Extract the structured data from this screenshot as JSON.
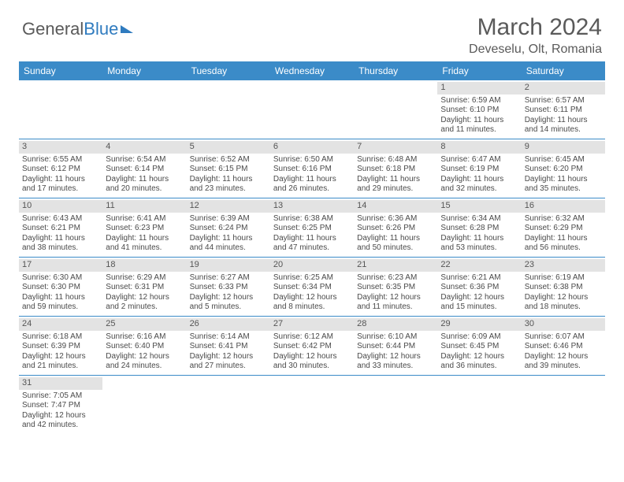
{
  "logo": {
    "part1": "General",
    "part2": "Blue"
  },
  "title": "March 2024",
  "location": "Deveselu, Olt, Romania",
  "colors": {
    "header_bg": "#3b8bc8",
    "header_text": "#ffffff",
    "daynum_bg": "#e3e3e3",
    "text": "#4a4a4a",
    "rule": "#3b8bc8",
    "logo_gray": "#5a5a5a",
    "logo_blue": "#2f7bbf"
  },
  "typography": {
    "title_fontsize": 30,
    "location_fontsize": 16,
    "dayheader_fontsize": 12,
    "cell_fontsize": 10
  },
  "day_names": [
    "Sunday",
    "Monday",
    "Tuesday",
    "Wednesday",
    "Thursday",
    "Friday",
    "Saturday"
  ],
  "weeks": [
    [
      null,
      null,
      null,
      null,
      null,
      {
        "n": "1",
        "sr": "Sunrise: 6:59 AM",
        "ss": "Sunset: 6:10 PM",
        "d1": "Daylight: 11 hours",
        "d2": "and 11 minutes."
      },
      {
        "n": "2",
        "sr": "Sunrise: 6:57 AM",
        "ss": "Sunset: 6:11 PM",
        "d1": "Daylight: 11 hours",
        "d2": "and 14 minutes."
      }
    ],
    [
      {
        "n": "3",
        "sr": "Sunrise: 6:55 AM",
        "ss": "Sunset: 6:12 PM",
        "d1": "Daylight: 11 hours",
        "d2": "and 17 minutes."
      },
      {
        "n": "4",
        "sr": "Sunrise: 6:54 AM",
        "ss": "Sunset: 6:14 PM",
        "d1": "Daylight: 11 hours",
        "d2": "and 20 minutes."
      },
      {
        "n": "5",
        "sr": "Sunrise: 6:52 AM",
        "ss": "Sunset: 6:15 PM",
        "d1": "Daylight: 11 hours",
        "d2": "and 23 minutes."
      },
      {
        "n": "6",
        "sr": "Sunrise: 6:50 AM",
        "ss": "Sunset: 6:16 PM",
        "d1": "Daylight: 11 hours",
        "d2": "and 26 minutes."
      },
      {
        "n": "7",
        "sr": "Sunrise: 6:48 AM",
        "ss": "Sunset: 6:18 PM",
        "d1": "Daylight: 11 hours",
        "d2": "and 29 minutes."
      },
      {
        "n": "8",
        "sr": "Sunrise: 6:47 AM",
        "ss": "Sunset: 6:19 PM",
        "d1": "Daylight: 11 hours",
        "d2": "and 32 minutes."
      },
      {
        "n": "9",
        "sr": "Sunrise: 6:45 AM",
        "ss": "Sunset: 6:20 PM",
        "d1": "Daylight: 11 hours",
        "d2": "and 35 minutes."
      }
    ],
    [
      {
        "n": "10",
        "sr": "Sunrise: 6:43 AM",
        "ss": "Sunset: 6:21 PM",
        "d1": "Daylight: 11 hours",
        "d2": "and 38 minutes."
      },
      {
        "n": "11",
        "sr": "Sunrise: 6:41 AM",
        "ss": "Sunset: 6:23 PM",
        "d1": "Daylight: 11 hours",
        "d2": "and 41 minutes."
      },
      {
        "n": "12",
        "sr": "Sunrise: 6:39 AM",
        "ss": "Sunset: 6:24 PM",
        "d1": "Daylight: 11 hours",
        "d2": "and 44 minutes."
      },
      {
        "n": "13",
        "sr": "Sunrise: 6:38 AM",
        "ss": "Sunset: 6:25 PM",
        "d1": "Daylight: 11 hours",
        "d2": "and 47 minutes."
      },
      {
        "n": "14",
        "sr": "Sunrise: 6:36 AM",
        "ss": "Sunset: 6:26 PM",
        "d1": "Daylight: 11 hours",
        "d2": "and 50 minutes."
      },
      {
        "n": "15",
        "sr": "Sunrise: 6:34 AM",
        "ss": "Sunset: 6:28 PM",
        "d1": "Daylight: 11 hours",
        "d2": "and 53 minutes."
      },
      {
        "n": "16",
        "sr": "Sunrise: 6:32 AM",
        "ss": "Sunset: 6:29 PM",
        "d1": "Daylight: 11 hours",
        "d2": "and 56 minutes."
      }
    ],
    [
      {
        "n": "17",
        "sr": "Sunrise: 6:30 AM",
        "ss": "Sunset: 6:30 PM",
        "d1": "Daylight: 11 hours",
        "d2": "and 59 minutes."
      },
      {
        "n": "18",
        "sr": "Sunrise: 6:29 AM",
        "ss": "Sunset: 6:31 PM",
        "d1": "Daylight: 12 hours",
        "d2": "and 2 minutes."
      },
      {
        "n": "19",
        "sr": "Sunrise: 6:27 AM",
        "ss": "Sunset: 6:33 PM",
        "d1": "Daylight: 12 hours",
        "d2": "and 5 minutes."
      },
      {
        "n": "20",
        "sr": "Sunrise: 6:25 AM",
        "ss": "Sunset: 6:34 PM",
        "d1": "Daylight: 12 hours",
        "d2": "and 8 minutes."
      },
      {
        "n": "21",
        "sr": "Sunrise: 6:23 AM",
        "ss": "Sunset: 6:35 PM",
        "d1": "Daylight: 12 hours",
        "d2": "and 11 minutes."
      },
      {
        "n": "22",
        "sr": "Sunrise: 6:21 AM",
        "ss": "Sunset: 6:36 PM",
        "d1": "Daylight: 12 hours",
        "d2": "and 15 minutes."
      },
      {
        "n": "23",
        "sr": "Sunrise: 6:19 AM",
        "ss": "Sunset: 6:38 PM",
        "d1": "Daylight: 12 hours",
        "d2": "and 18 minutes."
      }
    ],
    [
      {
        "n": "24",
        "sr": "Sunrise: 6:18 AM",
        "ss": "Sunset: 6:39 PM",
        "d1": "Daylight: 12 hours",
        "d2": "and 21 minutes."
      },
      {
        "n": "25",
        "sr": "Sunrise: 6:16 AM",
        "ss": "Sunset: 6:40 PM",
        "d1": "Daylight: 12 hours",
        "d2": "and 24 minutes."
      },
      {
        "n": "26",
        "sr": "Sunrise: 6:14 AM",
        "ss": "Sunset: 6:41 PM",
        "d1": "Daylight: 12 hours",
        "d2": "and 27 minutes."
      },
      {
        "n": "27",
        "sr": "Sunrise: 6:12 AM",
        "ss": "Sunset: 6:42 PM",
        "d1": "Daylight: 12 hours",
        "d2": "and 30 minutes."
      },
      {
        "n": "28",
        "sr": "Sunrise: 6:10 AM",
        "ss": "Sunset: 6:44 PM",
        "d1": "Daylight: 12 hours",
        "d2": "and 33 minutes."
      },
      {
        "n": "29",
        "sr": "Sunrise: 6:09 AM",
        "ss": "Sunset: 6:45 PM",
        "d1": "Daylight: 12 hours",
        "d2": "and 36 minutes."
      },
      {
        "n": "30",
        "sr": "Sunrise: 6:07 AM",
        "ss": "Sunset: 6:46 PM",
        "d1": "Daylight: 12 hours",
        "d2": "and 39 minutes."
      }
    ],
    [
      {
        "n": "31",
        "sr": "Sunrise: 7:05 AM",
        "ss": "Sunset: 7:47 PM",
        "d1": "Daylight: 12 hours",
        "d2": "and 42 minutes."
      },
      null,
      null,
      null,
      null,
      null,
      null
    ]
  ]
}
